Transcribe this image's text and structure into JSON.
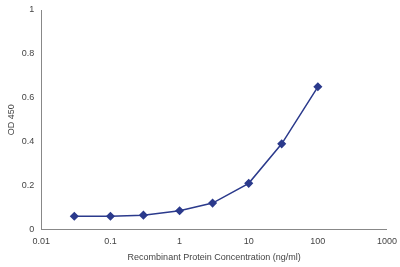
{
  "chart_data": {
    "type": "line",
    "x_label": "Recombinant Protein Concentration (ng/ml)",
    "y_label": "OD 450",
    "x": [
      0.03,
      0.1,
      0.3,
      1,
      3,
      10,
      30,
      100
    ],
    "values": [
      0.06,
      0.06,
      0.065,
      0.085,
      0.12,
      0.21,
      0.39,
      0.65
    ],
    "color": "#2b3a8c",
    "marker": "diamond",
    "log": "x",
    "xlim": [
      0.01,
      1000
    ],
    "xticks": [
      0.01,
      0.1,
      1,
      10,
      100,
      1000
    ],
    "ylim": [
      0,
      1
    ],
    "yticks": [
      0,
      0.2,
      0.4,
      0.6,
      0.8,
      1
    ],
    "grid": false
  }
}
